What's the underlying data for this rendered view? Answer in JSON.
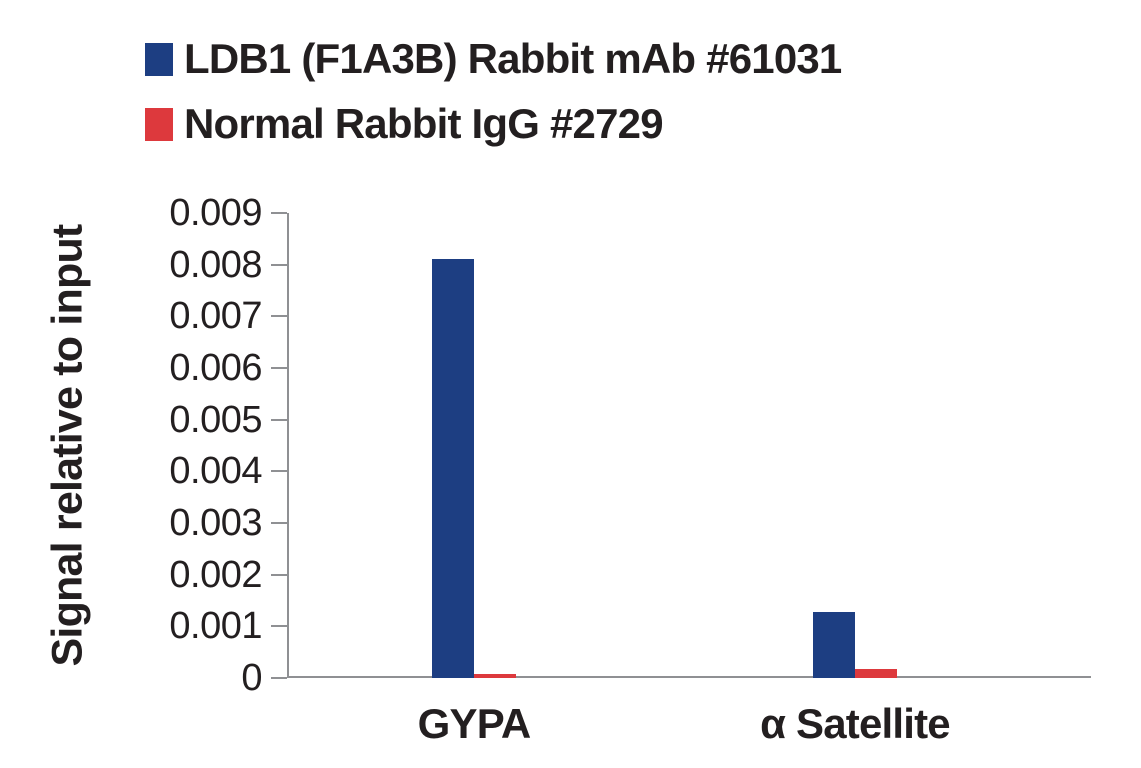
{
  "chart_data": {
    "type": "bar",
    "categories": [
      "GYPA",
      "α Satellite"
    ],
    "series": [
      {
        "name": "LDB1 (F1A3B) Rabbit mAb #61031",
        "color": "#1d3e82",
        "values": [
          0.0081,
          0.00128
        ]
      },
      {
        "name": "Normal Rabbit IgG #2729",
        "color": "#dd393d",
        "values": [
          8e-05,
          0.00018
        ]
      }
    ],
    "title": "",
    "xlabel": "",
    "ylabel": "Signal relative to input",
    "ylim": [
      0,
      0.009
    ],
    "ytick_step": 0.001,
    "yticks": [
      "0",
      "0.001",
      "0.002",
      "0.003",
      "0.004",
      "0.005",
      "0.006",
      "0.007",
      "0.008",
      "0.009"
    ],
    "grid": false,
    "legend_position": "top-left",
    "axis_color": "#8f9093",
    "text_color": "#231f20"
  }
}
